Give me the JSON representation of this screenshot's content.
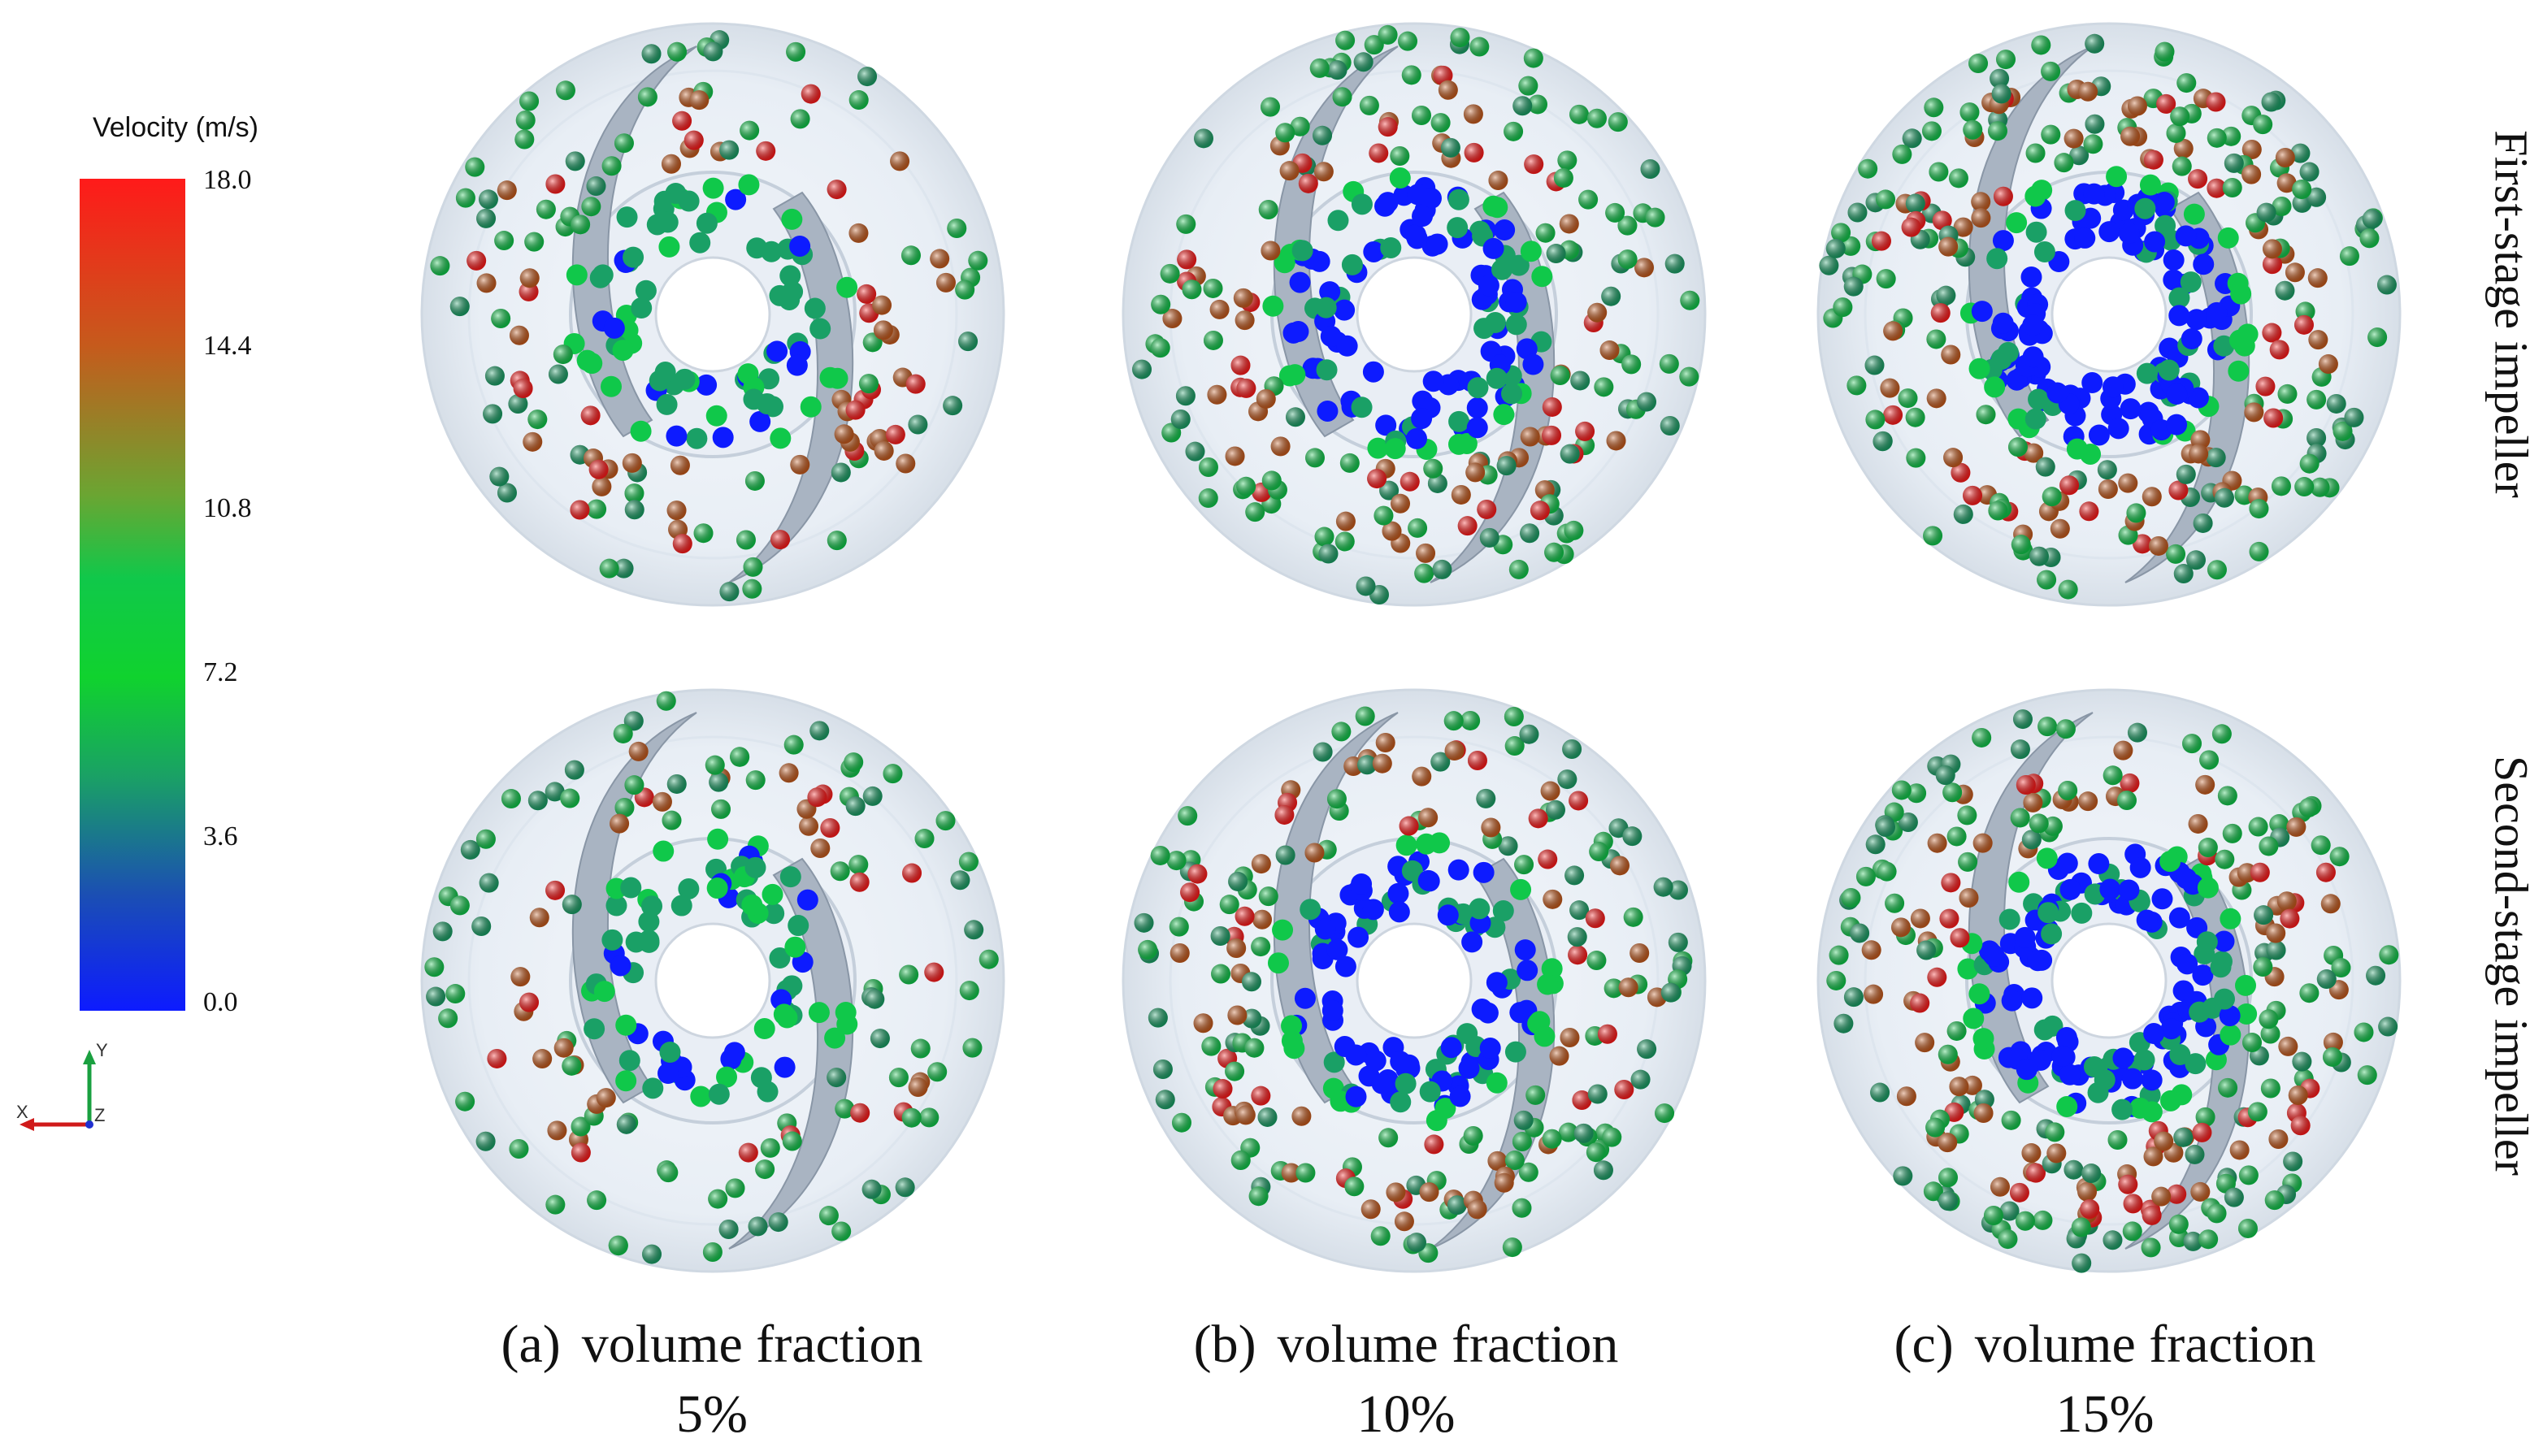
{
  "legend": {
    "title": "Velocity (m/s)",
    "ticks": [
      "18.0",
      "14.4",
      "10.8",
      "7.2",
      "3.6",
      "0.0"
    ],
    "colors": {
      "high": "#ff1a1a",
      "mid_high": "#c65a1c",
      "mid": "#10c84a",
      "mid_low": "#1aa066",
      "low": "#0d1bff"
    }
  },
  "axes": {
    "y": "Y",
    "x": "X",
    "z": "Z"
  },
  "row_labels": [
    "First-stage impeller",
    "Second-stage impeller"
  ],
  "captions": [
    {
      "letter": "(a)",
      "text": "volume fraction",
      "value": "5%"
    },
    {
      "letter": "(b)",
      "text": "volume fraction",
      "value": "10%"
    },
    {
      "letter": "(c)",
      "text": "volume fraction",
      "value": "15%"
    }
  ],
  "panels": [
    {
      "stage": "first",
      "volume_fraction": "5%",
      "particle_density": 0.35
    },
    {
      "stage": "first",
      "volume_fraction": "10%",
      "particle_density": 0.7
    },
    {
      "stage": "first",
      "volume_fraction": "15%",
      "particle_density": 1.0
    },
    {
      "stage": "second",
      "volume_fraction": "5%",
      "particle_density": 0.35
    },
    {
      "stage": "second",
      "volume_fraction": "10%",
      "particle_density": 0.7
    },
    {
      "stage": "second",
      "volume_fraction": "15%",
      "particle_density": 1.0
    }
  ]
}
